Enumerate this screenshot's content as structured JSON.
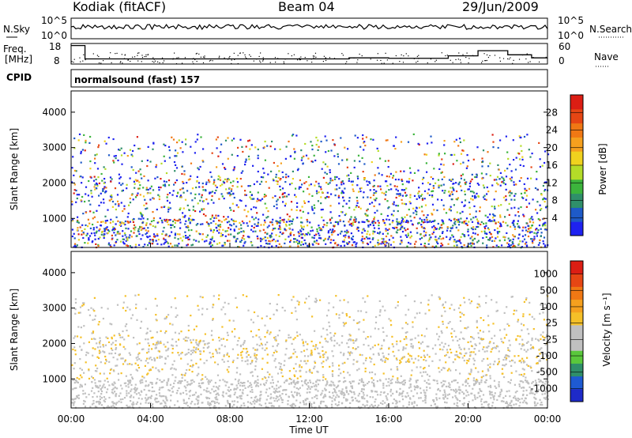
{
  "header": {
    "title": "Kodiak (fitACF)",
    "beam": "Beam 04",
    "date": "29/Jun/2009"
  },
  "summary_panels": {
    "nsky_label": "N.Sky",
    "nsearch_label": "N.Search",
    "nsky_ticks": [
      "10^5",
      "10^0"
    ],
    "nsky_right_ticks": [
      "10^5",
      "10^0"
    ],
    "freq_label": [
      "Freq.",
      "[MHz]"
    ],
    "freq_ticks": [
      "18",
      "8"
    ],
    "nave_label": "Nave",
    "nave_ticks": [
      "60",
      "0"
    ],
    "cpid_label": "CPID",
    "cpid_text": "normalsound (fast) 157",
    "freq_steps_mhz": [
      [
        0.0,
        17
      ],
      [
        0.7,
        10.5
      ],
      [
        14.0,
        11
      ],
      [
        16.0,
        10.8
      ],
      [
        19.0,
        12
      ],
      [
        20.5,
        14.5
      ],
      [
        22.0,
        12.5
      ],
      [
        23.2,
        11
      ],
      [
        24.0,
        11
      ]
    ]
  },
  "chart_data": [
    {
      "type": "heatmap",
      "title": "",
      "xlabel": "",
      "ylabel": "Slant Range [km]",
      "y_ticks": [
        1000,
        2000,
        3000,
        4000
      ],
      "ylim": [
        180,
        4600
      ],
      "xlim_hours": [
        0,
        24
      ],
      "colorbar": {
        "label": "Power [dB]",
        "ticks": [
          "4",
          "8",
          "12",
          "16",
          "20",
          "24",
          "28"
        ],
        "colors": [
          "#1e22f0",
          "#1e5ac8",
          "#2f8f6a",
          "#3cb43c",
          "#b4dc28",
          "#f0d21e",
          "#f5a01e",
          "#f07814",
          "#e64614",
          "#dc1e14"
        ]
      }
    },
    {
      "type": "heatmap",
      "title": "",
      "xlabel": "Time UT",
      "ylabel": "Slant Range [km]",
      "y_ticks": [
        1000,
        2000,
        3000,
        4000
      ],
      "ylim": [
        180,
        4600
      ],
      "xlim_hours": [
        0,
        24
      ],
      "x_tick_labels": [
        "00:00",
        "04:00",
        "08:00",
        "12:00",
        "16:00",
        "20:00",
        "00:00"
      ],
      "colorbar": {
        "label": "Velocity [m s⁻¹]",
        "ticks": [
          "1000",
          "500",
          "100",
          "25",
          "-25",
          "-100",
          "-500",
          "-1000"
        ],
        "colors": [
          "#1e2ac8",
          "#1e5ad2",
          "#2f8f6a",
          "#5ac83c",
          "#c0c0c0",
          "#c0c0c0",
          "#f5c028",
          "#f5a01e",
          "#f07814",
          "#e64614",
          "#dc1e14"
        ]
      }
    }
  ]
}
